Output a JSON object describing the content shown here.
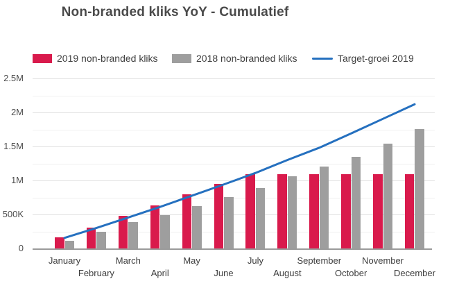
{
  "chart": {
    "title": "Non-branded kliks YoY - Cumulatief"
  },
  "legend": {
    "items": [
      {
        "name": "legend-2019-bars",
        "label": "2019 non-branded kliks",
        "color": "#d91a4c",
        "swatch": "square"
      },
      {
        "name": "legend-2018-bars",
        "label": "2018 non-branded kliks",
        "color": "#9e9e9e",
        "swatch": "square"
      },
      {
        "name": "legend-target-line",
        "label": "Target-groei 2019",
        "color": "#2570bf",
        "swatch": "line"
      }
    ]
  },
  "chart_data": {
    "type": "bar",
    "title": "Non-branded kliks YoY - Cumulatief",
    "categories": [
      "January",
      "February",
      "March",
      "April",
      "May",
      "June",
      "July",
      "August",
      "September",
      "October",
      "November",
      "December"
    ],
    "series": [
      {
        "name": "2019 non-branded kliks",
        "type": "bar",
        "color": "#d91a4c",
        "values": [
          160000,
          310000,
          480000,
          630000,
          800000,
          950000,
          1090000,
          1090000,
          1090000,
          1090000,
          1090000,
          1090000
        ]
      },
      {
        "name": "2018 non-branded kliks",
        "type": "bar",
        "color": "#9e9e9e",
        "values": [
          115000,
          245000,
          390000,
          490000,
          620000,
          760000,
          890000,
          1060000,
          1200000,
          1350000,
          1540000,
          1760000
        ]
      },
      {
        "name": "Target-groei 2019",
        "type": "line",
        "color": "#2570bf",
        "values": [
          155000,
          300000,
          455000,
          610000,
          775000,
          940000,
          1110000,
          1300000,
          1480000,
          1690000,
          1905000,
          2120000
        ]
      }
    ],
    "xlabel": "",
    "ylabel": "",
    "y_axis": {
      "ticks": [
        "0",
        "500K",
        "1M",
        "1.5M",
        "2M",
        "2.5M"
      ],
      "tick_values": [
        0,
        500000,
        1000000,
        1500000,
        2000000,
        2500000
      ],
      "min": 0,
      "max": 2500000,
      "minor_step": 250000
    },
    "grid": true,
    "legend_position": "top",
    "x_label_layout": "staggered-two-rows"
  }
}
